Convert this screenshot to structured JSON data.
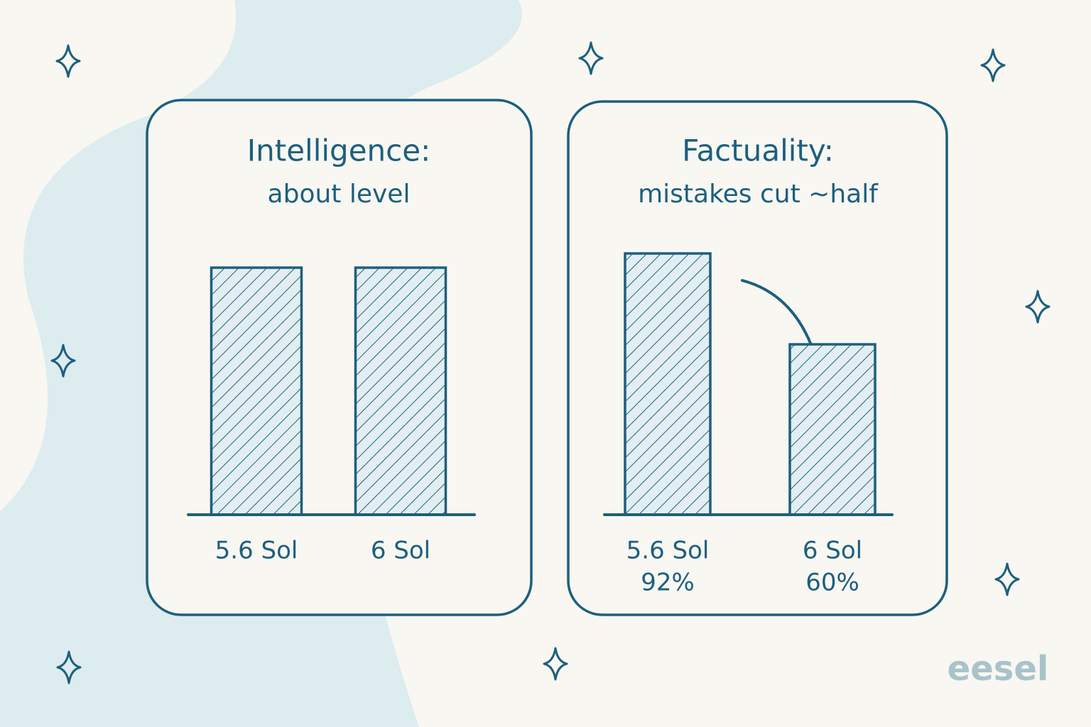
{
  "chart_data": [
    {
      "type": "bar",
      "title": "Intelligence:",
      "subtitle": "about level",
      "categories": [
        "5.6 Sol",
        "6 Sol"
      ],
      "values": [
        87,
        87
      ],
      "color": "#1d5f7e"
    },
    {
      "type": "bar",
      "title": "Factuality:",
      "subtitle": "mistakes cut ~half",
      "categories": [
        "5.6 Sol",
        "6 Sol"
      ],
      "values": [
        92,
        60
      ],
      "value_labels": [
        "92%",
        "60%"
      ],
      "color": "#1d5f7e"
    }
  ],
  "logo": "eesel"
}
